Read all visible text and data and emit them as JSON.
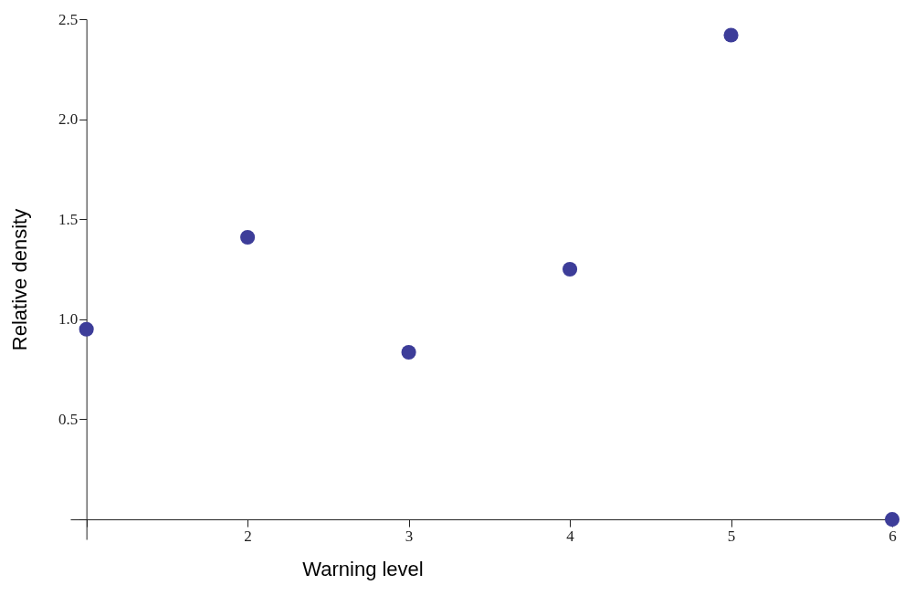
{
  "chart_data": {
    "type": "scatter",
    "xlabel": "Warning level",
    "ylabel": "Relative density",
    "x": [
      1,
      2,
      3,
      4,
      5,
      6
    ],
    "series": [
      {
        "color": "#3d3d99",
        "values": [
          0.95,
          1.41,
          0.835,
          1.25,
          2.42,
          0
        ]
      }
    ],
    "xlim": [
      0.9,
      6
    ],
    "ylim": [
      -0.1,
      2.5
    ],
    "xticks": [
      {
        "value": 1,
        "label": null
      },
      2,
      3,
      4,
      5,
      6
    ],
    "yticks": [
      {
        "value": 0,
        "label": null
      },
      0.5,
      {
        "value": 1,
        "label": "1.0"
      },
      1.5,
      {
        "value": 2,
        "label": "2.0"
      },
      2.5
    ],
    "grid": false,
    "marker": "circle"
  }
}
